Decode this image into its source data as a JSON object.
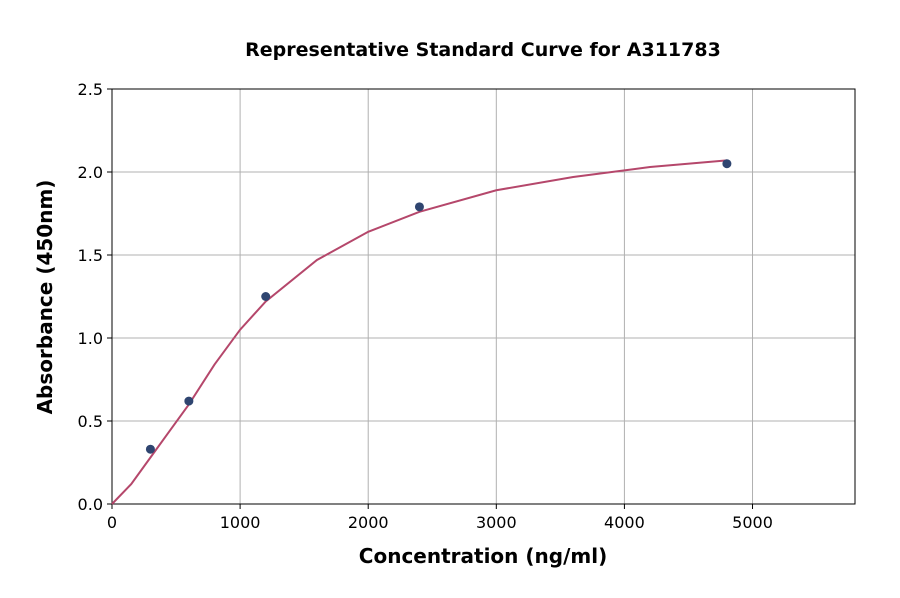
{
  "chart_data": {
    "type": "scatter",
    "title": "Representative Standard Curve for A311783",
    "x_label": "Concentration (ng/ml)",
    "y_label": "Absorbance (450nm)",
    "x": [
      300,
      600,
      1200,
      2400,
      4800
    ],
    "values": [
      0.33,
      0.62,
      1.25,
      1.79,
      2.05
    ],
    "color": "#2f4570",
    "curve": {
      "color": "#b5476b",
      "x": [
        0,
        150,
        300,
        450,
        600,
        800,
        1000,
        1200,
        1600,
        2000,
        2400,
        3000,
        3600,
        4200,
        4800
      ],
      "values": [
        0.0,
        0.12,
        0.28,
        0.44,
        0.6,
        0.84,
        1.05,
        1.22,
        1.47,
        1.64,
        1.76,
        1.89,
        1.97,
        2.03,
        2.07
      ]
    },
    "xlim": [
      0,
      5800
    ],
    "xticks": [
      0,
      1000,
      2000,
      3000,
      4000,
      5000
    ],
    "ylim": [
      0,
      2.5
    ],
    "yticks": [
      {
        "value": 0,
        "label": "0.0"
      },
      0.5,
      {
        "value": 1,
        "label": "1.0"
      },
      1.5,
      {
        "value": 2,
        "label": "2.0"
      },
      2.5
    ],
    "grid": true
  }
}
